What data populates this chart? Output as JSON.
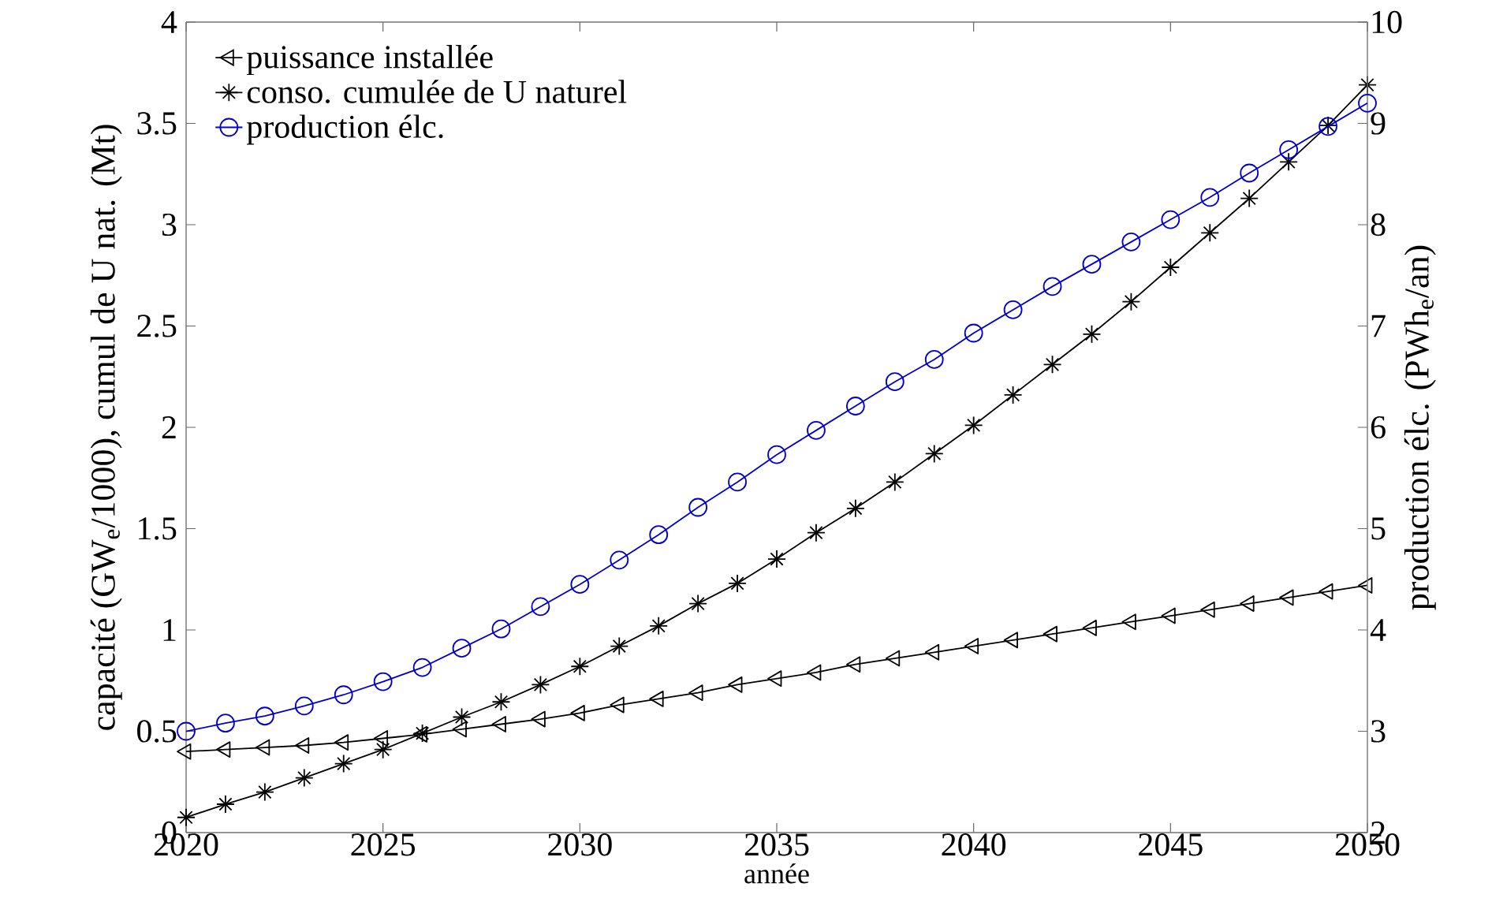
{
  "chart_data": {
    "type": "line",
    "xlabel": "année",
    "ylabel": "capacité (GW$_{e}$/1000), cumul de U nat. (Mt)",
    "y2label": "production élc. (PWh$_{e}$/an)",
    "x": [
      2020,
      2021,
      2022,
      2023,
      2024,
      2025,
      2026,
      2027,
      2028,
      2029,
      2030,
      2031,
      2032,
      2033,
      2034,
      2035,
      2036,
      2037,
      2038,
      2039,
      2040,
      2041,
      2042,
      2043,
      2044,
      2045,
      2046,
      2047,
      2048,
      2049,
      2050
    ],
    "xlim": [
      2020,
      2050
    ],
    "xticks": [
      2020,
      2025,
      2030,
      2035,
      2040,
      2045,
      2050
    ],
    "ylim": [
      0,
      4
    ],
    "yticks": [
      0,
      0.5,
      1,
      1.5,
      2,
      2.5,
      3,
      3.5,
      4
    ],
    "y2lim": [
      2,
      10
    ],
    "y2ticks": [
      2,
      3,
      4,
      5,
      6,
      7,
      8,
      9,
      10
    ],
    "grid": false,
    "legend": "top left",
    "line_style": "solid",
    "series": [
      {
        "name": "puissance installée",
        "color": "#000000",
        "marker": "triangle",
        "values": [
          0.4,
          0.41,
          0.42,
          0.43,
          0.445,
          0.465,
          0.485,
          0.51,
          0.535,
          0.56,
          0.59,
          0.63,
          0.66,
          0.69,
          0.73,
          0.76,
          0.79,
          0.83,
          0.86,
          0.89,
          0.92,
          0.95,
          0.98,
          1.01,
          1.04,
          1.07,
          1.1,
          1.13,
          1.16,
          1.19,
          1.22
        ]
      },
      {
        "name": "conso. cumulée de U naturel",
        "color": "#000000",
        "marker": "cross",
        "values": [
          0.075,
          0.14,
          0.2,
          0.27,
          0.34,
          0.41,
          0.49,
          0.57,
          0.645,
          0.73,
          0.82,
          0.92,
          1.02,
          1.13,
          1.23,
          1.35,
          1.48,
          1.6,
          1.73,
          1.87,
          2.01,
          2.16,
          2.31,
          2.46,
          2.62,
          2.79,
          2.96,
          3.13,
          3.31,
          3.49,
          3.69
        ]
      },
      {
        "name": "production élc.",
        "color": "#0000cc",
        "marker": "circle",
        "axis": "y2",
        "values": [
          3.0,
          3.08,
          3.15,
          3.25,
          3.36,
          3.49,
          3.63,
          3.82,
          4.01,
          4.23,
          4.45,
          4.69,
          4.94,
          5.21,
          5.46,
          5.73,
          5.97,
          6.21,
          6.45,
          6.67,
          6.93,
          7.16,
          7.39,
          7.61,
          7.83,
          8.05,
          8.27,
          8.51,
          8.74,
          8.97,
          9.2
        ]
      }
    ]
  }
}
